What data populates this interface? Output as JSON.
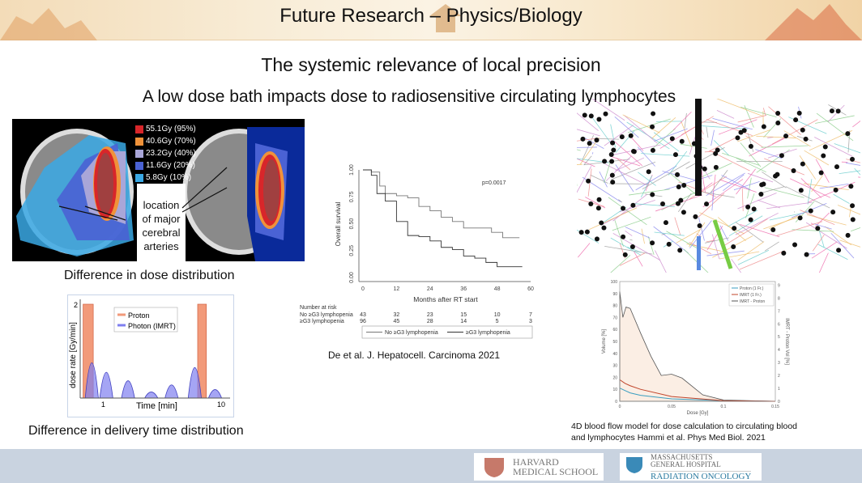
{
  "header": {
    "title": "Future Research – Physics/Biology"
  },
  "slide": {
    "title": "The systemic relevance of local precision",
    "subtitle": "A low dose bath impacts dose to radiosensitive circulating lymphocytes",
    "brain_figure": {
      "legend": [
        "55.1Gy (95%)",
        "40.6Gy (70%)",
        "23.2Gy (40%)",
        "11.6Gy (20%)",
        "5.8Gy (10%)"
      ],
      "legend_colors": [
        "#d8262a",
        "#f0923a",
        "#a9a6d8",
        "#4a62d4",
        "#3aa8e4"
      ],
      "annotation": [
        "location",
        "of major",
        "cerebral",
        "arteries"
      ],
      "caption": "Difference in dose distribution"
    },
    "delivery_caption": "Difference in delivery time distribution",
    "km_caption": "De et al. J. Hepatocell. Carcinoma 2021",
    "km_risk": {
      "title": "Number at risk",
      "rows": [
        {
          "label": "No ≥G3 lymphopenia",
          "values": [
            "43",
            "32",
            "23",
            "15",
            "10",
            "7"
          ]
        },
        {
          "label": "≥G3 lymphopenia",
          "values": [
            "96",
            "45",
            "28",
            "14",
            "5",
            "3"
          ]
        }
      ]
    },
    "flow_caption": [
      "4D blood flow model for dose calculation to circulating blood",
      "and lymphocytes Hammi et al. Phys Med Biol. 2021"
    ]
  },
  "footer": {
    "harvard": [
      "HARVARD",
      "MEDICAL SCHOOL"
    ],
    "mgh": [
      "MASSACHUSETTS",
      "GENERAL HOSPITAL"
    ],
    "dept": "RADIATION ONCOLOGY"
  },
  "chart_data": [
    {
      "type": "area",
      "title": "",
      "xlabel": "Time [min]",
      "ylabel": "dose rate [Gy/min]",
      "xticks": [
        "1",
        "10"
      ],
      "yticks": [
        "2"
      ],
      "legend": [
        "Proton",
        "Photon (IMRT)"
      ],
      "legend_placement": "top-center",
      "colors": {
        "Proton": "#f29a7a",
        "Photon (IMRT)": "#7f7ff0"
      },
      "proton_bars": [
        {
          "start": 0.2,
          "end": 0.9,
          "value": 2
        },
        {
          "start": 8.1,
          "end": 8.7,
          "value": 2
        }
      ],
      "photon_peaks": [
        {
          "t": 0.8,
          "value": 0.75
        },
        {
          "t": 1.8,
          "value": 0.55
        },
        {
          "t": 3.3,
          "value": 0.37
        },
        {
          "t": 4.9,
          "value": 0.13
        },
        {
          "t": 6.3,
          "value": 0.28
        },
        {
          "t": 7.9,
          "value": 0.65
        },
        {
          "t": 9.3,
          "value": 0.18
        }
      ]
    },
    {
      "type": "line",
      "title": "",
      "xlabel": "Months after RT start",
      "ylabel": "Overall survival",
      "xlim": [
        0,
        60
      ],
      "ylim": [
        0,
        1
      ],
      "xticks": [
        "0",
        "12",
        "24",
        "36",
        "48",
        "60"
      ],
      "yticks": [
        "0.00",
        "0.25",
        "0.50",
        "0.75",
        "1.00"
      ],
      "annotation": "p=0.0017",
      "legend_placement": "bottom",
      "series": [
        {
          "name": "No ≥G3 lymphopenia",
          "x": [
            0,
            3,
            6,
            8,
            12,
            16,
            20,
            24,
            28,
            32,
            36,
            40,
            46,
            50,
            56
          ],
          "y": [
            1,
            0.98,
            0.85,
            0.78,
            0.76,
            0.74,
            0.66,
            0.62,
            0.56,
            0.52,
            0.46,
            0.46,
            0.42,
            0.37,
            0.37
          ]
        },
        {
          "name": "≥G3 lymphopenia",
          "x": [
            0,
            3,
            5,
            8,
            12,
            16,
            20,
            24,
            28,
            32,
            36,
            40,
            44,
            48,
            57
          ],
          "y": [
            1,
            0.95,
            0.78,
            0.71,
            0.52,
            0.39,
            0.38,
            0.34,
            0.28,
            0.26,
            0.2,
            0.18,
            0.14,
            0.1,
            0.1
          ]
        }
      ]
    },
    {
      "type": "line",
      "title": "",
      "xlabel": "Dose [Gy]",
      "ylabel": "Volume [%]",
      "y2label": "IMRT - Proton Vol [%]",
      "xlim": [
        0,
        0.15
      ],
      "ylim": [
        0,
        100
      ],
      "y2lim": [
        0,
        9
      ],
      "xticks": [
        "0",
        "0.05",
        "0.1",
        "0.15"
      ],
      "yticks": [
        "0",
        "10",
        "20",
        "30",
        "40",
        "50",
        "60",
        "70",
        "80",
        "90",
        "100"
      ],
      "y2ticks": [
        "0",
        "1",
        "2",
        "3",
        "4",
        "5",
        "6",
        "7",
        "8",
        "9"
      ],
      "legend_placement": "top-right",
      "series": [
        {
          "name": "Proton (1 Fr.)",
          "color": "#3a9ec0",
          "axis": "left",
          "x": [
            0,
            0.005,
            0.01,
            0.02,
            0.05,
            0.1,
            0.15
          ],
          "y": [
            11,
            9,
            7,
            5,
            2,
            0.5,
            0
          ]
        },
        {
          "name": "IMRT (1 Fr.)",
          "color": "#c0442a",
          "axis": "left",
          "x": [
            0,
            0.005,
            0.01,
            0.02,
            0.05,
            0.1,
            0.15
          ],
          "y": [
            18,
            15,
            13,
            10,
            4,
            0.5,
            0
          ]
        },
        {
          "name": "IMRT - Proton",
          "color": "#555",
          "axis": "right",
          "fill": "#fbeee4",
          "x": [
            0,
            0.003,
            0.006,
            0.01,
            0.02,
            0.03,
            0.04,
            0.05,
            0.06,
            0.08,
            0.1,
            0.15
          ],
          "y": [
            8.5,
            6.5,
            7.3,
            7.2,
            5.3,
            3.5,
            2,
            2.1,
            1.8,
            0.5,
            0.1,
            0
          ]
        }
      ]
    }
  ]
}
